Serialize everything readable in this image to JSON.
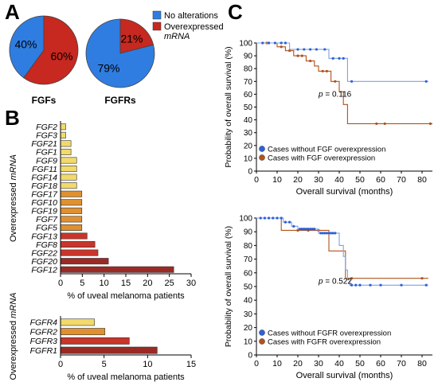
{
  "panels": {
    "a": "A",
    "b": "B",
    "c": "C"
  },
  "pie_legend": {
    "no_alterations": "No alterations",
    "overexpressed_line1": "Overexpressed",
    "overexpressed_line2": "mRNA"
  },
  "colors": {
    "no_alterations": "#2f7de1",
    "overexpressed": "#c7281f",
    "bar_yellow": "#f2d96b",
    "bar_orange": "#e0902f",
    "bar_red": "#c9352a",
    "bar_darkred": "#9b2a24",
    "km_blue": "#2d61d6",
    "km_blue_line": "#7fa0e8",
    "km_red": "#b0521b"
  },
  "chart_data": [
    {
      "type": "pie",
      "id": "pie_fgfs",
      "title": "FGFs",
      "labels": [
        "No alterations",
        "Overexpressed mRNA"
      ],
      "values": [
        40,
        60
      ],
      "value_labels": [
        "40%",
        "60%"
      ]
    },
    {
      "type": "pie",
      "id": "pie_fgfrs",
      "title": "FGFRs",
      "labels": [
        "No alterations",
        "Overexpressed mRNA"
      ],
      "values": [
        79,
        21
      ],
      "value_labels": [
        "79%",
        "21%"
      ]
    },
    {
      "type": "bar",
      "id": "bar_fgf",
      "orientation": "horizontal",
      "ylabel": "Overexpressed mRNA",
      "xlabel": "% of uveal melanoma patients",
      "xlim": [
        0,
        30
      ],
      "xticks": [
        0,
        5,
        10,
        15,
        20,
        25,
        30
      ],
      "categories": [
        "FGF2",
        "FGF3",
        "FGF21",
        "FGF1",
        "FGF9",
        "FGF11",
        "FGF14",
        "FGF18",
        "FGF17",
        "FGF10",
        "FGF19",
        "FGF7",
        "FGF5",
        "FGF13",
        "FGF8",
        "FGF22",
        "FGF20",
        "FGF12"
      ],
      "values": [
        1.2,
        1.2,
        2.4,
        2.4,
        3.7,
        3.7,
        3.7,
        3.7,
        4.9,
        4.9,
        4.9,
        4.9,
        4.9,
        6.1,
        7.9,
        8.6,
        11,
        26
      ],
      "colors": [
        "bar_yellow",
        "bar_yellow",
        "bar_yellow",
        "bar_yellow",
        "bar_yellow",
        "bar_yellow",
        "bar_yellow",
        "bar_yellow",
        "bar_orange",
        "bar_orange",
        "bar_orange",
        "bar_orange",
        "bar_orange",
        "bar_red",
        "bar_red",
        "bar_red",
        "bar_darkred",
        "bar_darkred"
      ]
    },
    {
      "type": "bar",
      "id": "bar_fgfr",
      "orientation": "horizontal",
      "ylabel": "Overexpressed mRNA",
      "xlabel": "% of uveal melanoma patients",
      "xlim": [
        0,
        15
      ],
      "xticks": [
        0,
        5,
        10,
        15
      ],
      "categories": [
        "FGFR4",
        "FGFR2",
        "FGFR3",
        "FGFR1"
      ],
      "values": [
        3.9,
        5.1,
        7.9,
        11.1
      ],
      "colors": [
        "bar_yellow",
        "bar_orange",
        "bar_red",
        "bar_darkred"
      ]
    },
    {
      "type": "line",
      "id": "km_fgf",
      "ylabel": "Probability of overall survival (%)",
      "xlabel": "Overall survival (months)",
      "xlim": [
        0,
        85
      ],
      "ylim": [
        0,
        100
      ],
      "xticks": [
        0,
        10,
        20,
        30,
        40,
        50,
        60,
        70,
        80
      ],
      "yticks": [
        0,
        10,
        20,
        30,
        40,
        50,
        60,
        70,
        80,
        90,
        100
      ],
      "annotation": "p = 0.116",
      "series": [
        {
          "name": "Cases without FGF overexpression",
          "color": "km_blue",
          "steps": [
            [
              0,
              100
            ],
            [
              16,
              100
            ],
            [
              16,
              95
            ],
            [
              35,
              95
            ],
            [
              35,
              88
            ],
            [
              44,
              88
            ],
            [
              44,
              70
            ],
            [
              83,
              70
            ]
          ],
          "censor": [
            [
              3,
              100
            ],
            [
              6,
              100
            ],
            [
              9,
              100
            ],
            [
              12,
              100
            ],
            [
              14,
              100
            ],
            [
              20,
              95
            ],
            [
              23,
              95
            ],
            [
              26,
              95
            ],
            [
              29,
              95
            ],
            [
              33,
              95
            ],
            [
              37,
              88
            ],
            [
              40,
              88
            ],
            [
              42,
              88
            ],
            [
              46,
              70
            ],
            [
              82,
              70
            ]
          ]
        },
        {
          "name": "Cases with FGF overexpression",
          "color": "km_red",
          "steps": [
            [
              0,
              100
            ],
            [
              10,
              100
            ],
            [
              10,
              97
            ],
            [
              14,
              97
            ],
            [
              14,
              94
            ],
            [
              18,
              94
            ],
            [
              18,
              90
            ],
            [
              24,
              90
            ],
            [
              24,
              86
            ],
            [
              28,
              86
            ],
            [
              28,
              82
            ],
            [
              30,
              82
            ],
            [
              30,
              78
            ],
            [
              36,
              78
            ],
            [
              36,
              70
            ],
            [
              40,
              70
            ],
            [
              40,
              62
            ],
            [
              42,
              62
            ],
            [
              42,
              52
            ],
            [
              44,
              52
            ],
            [
              44,
              37
            ],
            [
              85,
              37
            ]
          ],
          "censor": [
            [
              5,
              100
            ],
            [
              12,
              97
            ],
            [
              16,
              94
            ],
            [
              20,
              90
            ],
            [
              22,
              90
            ],
            [
              26,
              86
            ],
            [
              32,
              78
            ],
            [
              34,
              78
            ],
            [
              38,
              70
            ],
            [
              58,
              37
            ],
            [
              62,
              37
            ],
            [
              84,
              37
            ]
          ]
        }
      ]
    },
    {
      "type": "line",
      "id": "km_fgfr",
      "ylabel": "Probability of overall survival (%)",
      "xlabel": "Overall survival (months)",
      "xlim": [
        0,
        85
      ],
      "ylim": [
        0,
        100
      ],
      "xticks": [
        0,
        10,
        20,
        30,
        40,
        50,
        60,
        70,
        80
      ],
      "yticks": [
        0,
        10,
        20,
        30,
        40,
        50,
        60,
        70,
        80,
        90,
        100
      ],
      "annotation": "p = 0.522",
      "series": [
        {
          "name": "Cases without FGFR overexpression",
          "color": "km_blue",
          "steps": [
            [
              0,
              100
            ],
            [
              13,
              100
            ],
            [
              13,
              97
            ],
            [
              17,
              97
            ],
            [
              17,
              94
            ],
            [
              20,
              94
            ],
            [
              20,
              92
            ],
            [
              30,
              92
            ],
            [
              30,
              89
            ],
            [
              40,
              89
            ],
            [
              40,
              80
            ],
            [
              42,
              80
            ],
            [
              42,
              72
            ],
            [
              43,
              72
            ],
            [
              43,
              62
            ],
            [
              44,
              62
            ],
            [
              44,
              55
            ],
            [
              45,
              55
            ],
            [
              45,
              51
            ],
            [
              83,
              51
            ]
          ],
          "censor": [
            [
              2,
              100
            ],
            [
              4,
              100
            ],
            [
              6,
              100
            ],
            [
              8,
              100
            ],
            [
              10,
              100
            ],
            [
              12,
              100
            ],
            [
              14,
              97
            ],
            [
              16,
              97
            ],
            [
              18,
              94
            ],
            [
              21,
              92
            ],
            [
              22,
              92
            ],
            [
              23,
              92
            ],
            [
              24,
              92
            ],
            [
              25,
              92
            ],
            [
              26,
              92
            ],
            [
              27,
              92
            ],
            [
              28,
              92
            ],
            [
              31,
              89
            ],
            [
              32,
              89
            ],
            [
              33,
              89
            ],
            [
              34,
              89
            ],
            [
              35,
              89
            ],
            [
              36,
              89
            ],
            [
              37,
              89
            ],
            [
              38,
              89
            ],
            [
              46,
              51
            ],
            [
              48,
              51
            ],
            [
              50,
              51
            ],
            [
              55,
              51
            ],
            [
              60,
              51
            ],
            [
              70,
              51
            ],
            [
              82,
              51
            ]
          ]
        },
        {
          "name": "Cases with FGFR overexpression",
          "color": "km_red",
          "steps": [
            [
              0,
              100
            ],
            [
              12,
              100
            ],
            [
              12,
              91
            ],
            [
              35,
              91
            ],
            [
              35,
              76
            ],
            [
              43,
              76
            ],
            [
              43,
              56
            ],
            [
              83,
              56
            ]
          ],
          "censor": [
            [
              20,
              91
            ],
            [
              25,
              91
            ],
            [
              30,
              91
            ],
            [
              46,
              56
            ],
            [
              80,
              56
            ]
          ]
        }
      ]
    }
  ]
}
